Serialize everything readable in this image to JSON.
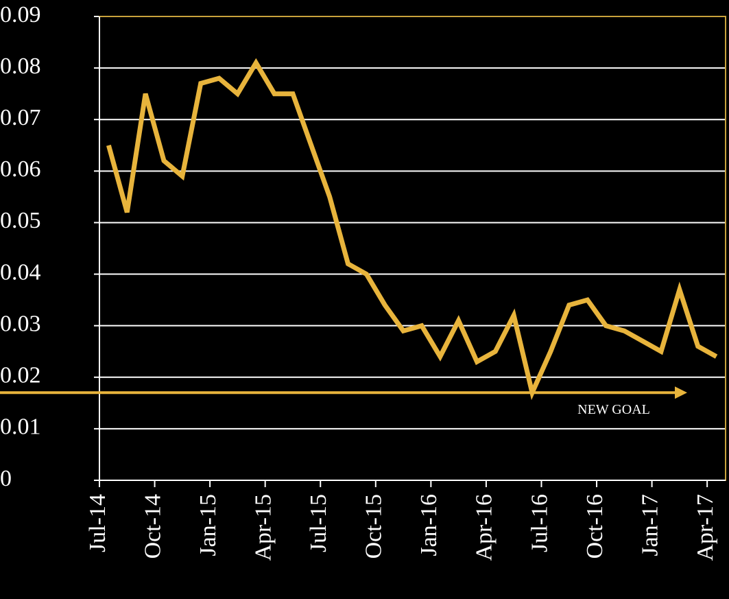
{
  "chart_data": {
    "type": "line",
    "categories": [
      "Jul-14",
      null,
      null,
      "Oct-14",
      null,
      null,
      "Jan-15",
      null,
      null,
      "Apr-15",
      null,
      null,
      "Jul-15",
      null,
      null,
      "Oct-15",
      null,
      null,
      "Jan-16",
      null,
      null,
      "Apr-16",
      null,
      null,
      "Jul-16",
      null,
      null,
      "Oct-16",
      null,
      null,
      "Jan-17",
      null,
      null,
      "Apr-17"
    ],
    "series": [
      {
        "color": "#e8b43c",
        "values": [
          0.065,
          0.052,
          0.075,
          0.062,
          0.059,
          0.077,
          0.078,
          0.075,
          0.081,
          0.075,
          0.075,
          0.065,
          0.055,
          0.042,
          0.04,
          0.034,
          0.029,
          0.03,
          0.024,
          0.031,
          0.023,
          0.025,
          0.032,
          0.017,
          0.025,
          0.034,
          0.035,
          0.03,
          0.029,
          0.027,
          0.025,
          0.037,
          0.026,
          0.024
        ]
      }
    ],
    "ylim": [
      0,
      0.09
    ],
    "yticks": [
      0,
      0.01,
      0.02,
      0.03,
      0.04,
      0.05,
      0.06,
      0.07,
      0.08,
      0.09
    ],
    "grid": true,
    "annotation": {
      "text": "NEW GOAL",
      "value": 0.017
    }
  }
}
